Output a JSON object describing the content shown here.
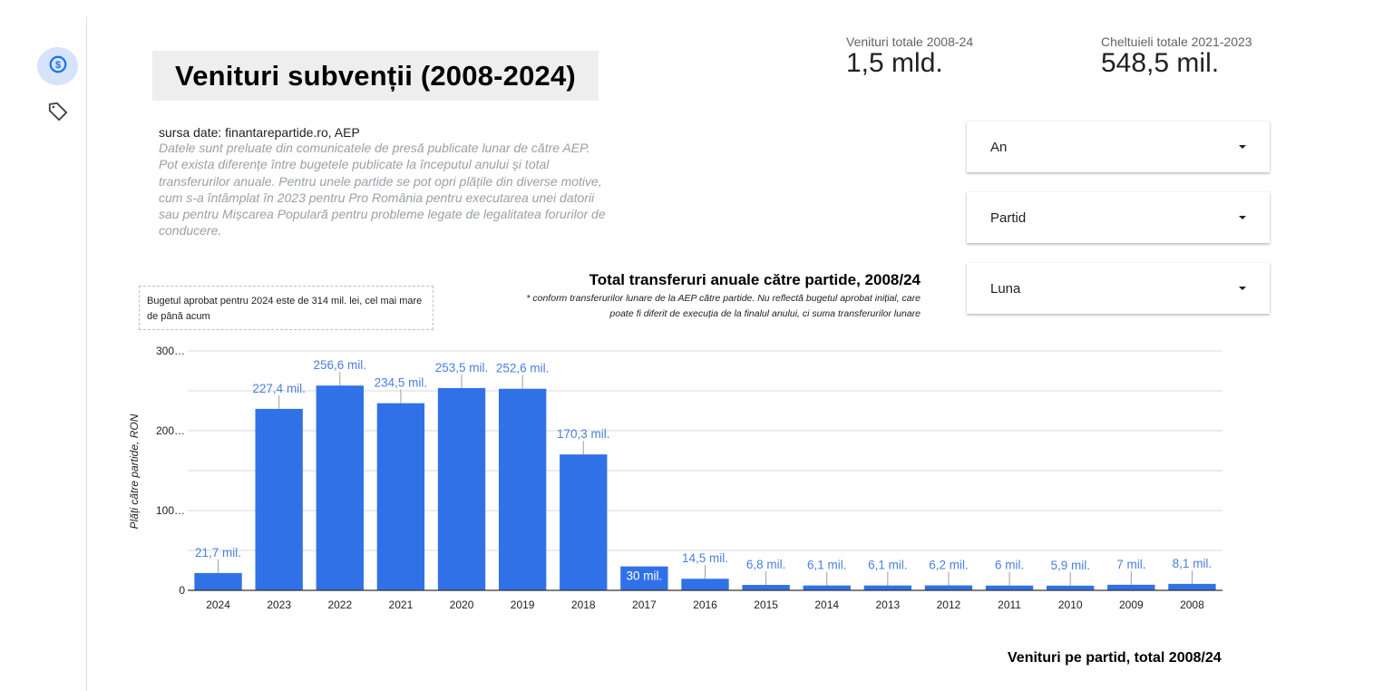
{
  "sidebar": {
    "items": [
      {
        "name": "dollar-circle-icon",
        "active": true
      },
      {
        "name": "tag-icon",
        "active": false
      }
    ]
  },
  "header": {
    "title": "Venituri subvenții (2008-2024)"
  },
  "kpis": [
    {
      "label": "Venituri totale 2008-24",
      "value": "1,5 mld."
    },
    {
      "label": "Cheltuieli totale 2021-2023",
      "value": "548,5 mil."
    }
  ],
  "source": {
    "heading": "sursa date: finantarepartide.ro, AEP",
    "description": "Datele sunt preluate din comunicatele de presă publicate lunar de către AEP. Pot exista diferențe între bugetele publicate la începutul anului și total transferurilor anuale. Pentru unele partide se pot opri plățile din diverse motive, cum s-a întâmplat în 2023 pentru Pro România pentru executarea unei datorii sau pentru Mișcarea Populară pentru probleme legate de legalitatea forurilor de conducere."
  },
  "filters": [
    {
      "label": "An"
    },
    {
      "label": "Partid"
    },
    {
      "label": "Luna"
    }
  ],
  "annotation": "Bugetul aprobat pentru 2024 este de 314 mil. lei, cel mai mare de până acum",
  "footer": {
    "next_chart_title": "Venituri pe partid, total 2008/24"
  },
  "colors": {
    "bar": "#3171e8",
    "label": "#4a7fe0",
    "grid": "#e0e0e0",
    "active_nav": "#d7e3fb",
    "accent": "#1a73e8"
  },
  "chart_data": {
    "type": "bar",
    "title": "Total transferuri anuale către partide, 2008/24",
    "subtitle": "* conform transferurilor lunare de la AEP către partide. Nu reflectă bugetul aprobat inițial, care poate fi diferit de execuția de la finalul anului, ci suma transferurilor lunare",
    "xlabel": "",
    "ylabel": "Plăți către partide, RON",
    "categories": [
      "2024",
      "2023",
      "2022",
      "2021",
      "2020",
      "2019",
      "2018",
      "2017",
      "2016",
      "2015",
      "2014",
      "2013",
      "2012",
      "2011",
      "2010",
      "2009",
      "2008"
    ],
    "values": [
      21.7,
      227.4,
      256.6,
      234.5,
      253.5,
      252.6,
      170.3,
      30,
      14.5,
      6.8,
      6.1,
      6.1,
      6.2,
      6,
      5.9,
      7,
      8.1
    ],
    "value_labels": [
      "21,7 mil.",
      "227,4 mil.",
      "256,6 mil.",
      "234,5 mil.",
      "253,5 mil.",
      "252,6 mil.",
      "170,3 mil.",
      "30 mil.",
      "14,5 mil.",
      "6,8 mil.",
      "6,1 mil.",
      "6,1 mil.",
      "6,2 mil.",
      "6 mil.",
      "5,9 mil.",
      "7 mil.",
      "8,1 mil."
    ],
    "units": "mil. RON",
    "yticks": [
      "0",
      "100…",
      "200…",
      "300…"
    ],
    "ytick_values": [
      0,
      100,
      200,
      300
    ],
    "ylim": [
      0,
      300
    ],
    "grid": true,
    "minor_grid_step": 50,
    "legend": "none"
  }
}
